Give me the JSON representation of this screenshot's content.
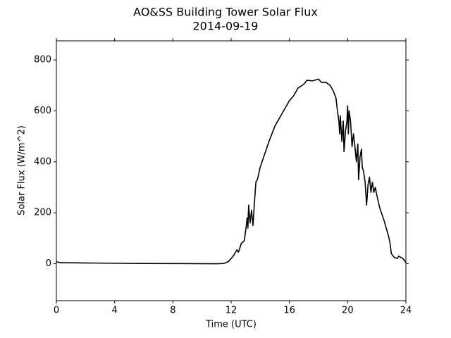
{
  "chart_data": {
    "type": "line",
    "title": "AO&SS Building Tower Solar Flux",
    "subtitle": "2014-09-19",
    "x_label": "Time (UTC)",
    "y_label": "Solar Flux (W/m^2)",
    "color": "#000000",
    "xlim": [
      0,
      24
    ],
    "ylim": [
      -145,
      875
    ],
    "xticks": [
      0,
      4,
      8,
      12,
      16,
      20,
      24
    ],
    "yticks": [
      0,
      200,
      400,
      600,
      800
    ],
    "x": [
      0,
      0.3,
      2,
      6,
      11,
      11.5,
      11.8,
      12,
      12.2,
      12.4,
      12.5,
      12.7,
      12.9,
      13.0,
      13.1,
      13.15,
      13.2,
      13.3,
      13.4,
      13.5,
      13.6,
      13.7,
      13.8,
      14.0,
      14.3,
      14.6,
      15,
      15.5,
      15.8,
      16,
      16.3,
      16.6,
      17,
      17.2,
      17.6,
      18,
      18.2,
      18.5,
      18.8,
      19.0,
      19.2,
      19.3,
      19.4,
      19.45,
      19.5,
      19.6,
      19.7,
      19.75,
      19.85,
      19.95,
      20.0,
      20.05,
      20.1,
      20.2,
      20.3,
      20.4,
      20.5,
      20.6,
      20.7,
      20.75,
      20.85,
      20.95,
      21.0,
      21.1,
      21.2,
      21.3,
      21.4,
      21.5,
      21.6,
      21.7,
      21.8,
      21.9,
      22.0,
      22.2,
      22.5,
      22.8,
      22.9,
      23.0,
      23.2,
      23.4,
      23.5,
      23.8,
      24
    ],
    "values": [
      8,
      4,
      3,
      1,
      0,
      1,
      8,
      20,
      35,
      55,
      45,
      80,
      90,
      130,
      180,
      140,
      230,
      160,
      210,
      150,
      240,
      320,
      330,
      380,
      430,
      480,
      540,
      590,
      620,
      640,
      660,
      690,
      705,
      720,
      718,
      725,
      712,
      712,
      700,
      680,
      650,
      600,
      560,
      510,
      580,
      480,
      560,
      440,
      520,
      560,
      620,
      510,
      600,
      560,
      460,
      510,
      460,
      400,
      470,
      330,
      420,
      450,
      380,
      360,
      320,
      230,
      310,
      340,
      280,
      320,
      280,
      300,
      270,
      220,
      170,
      110,
      85,
      40,
      25,
      20,
      30,
      20,
      5
    ]
  }
}
